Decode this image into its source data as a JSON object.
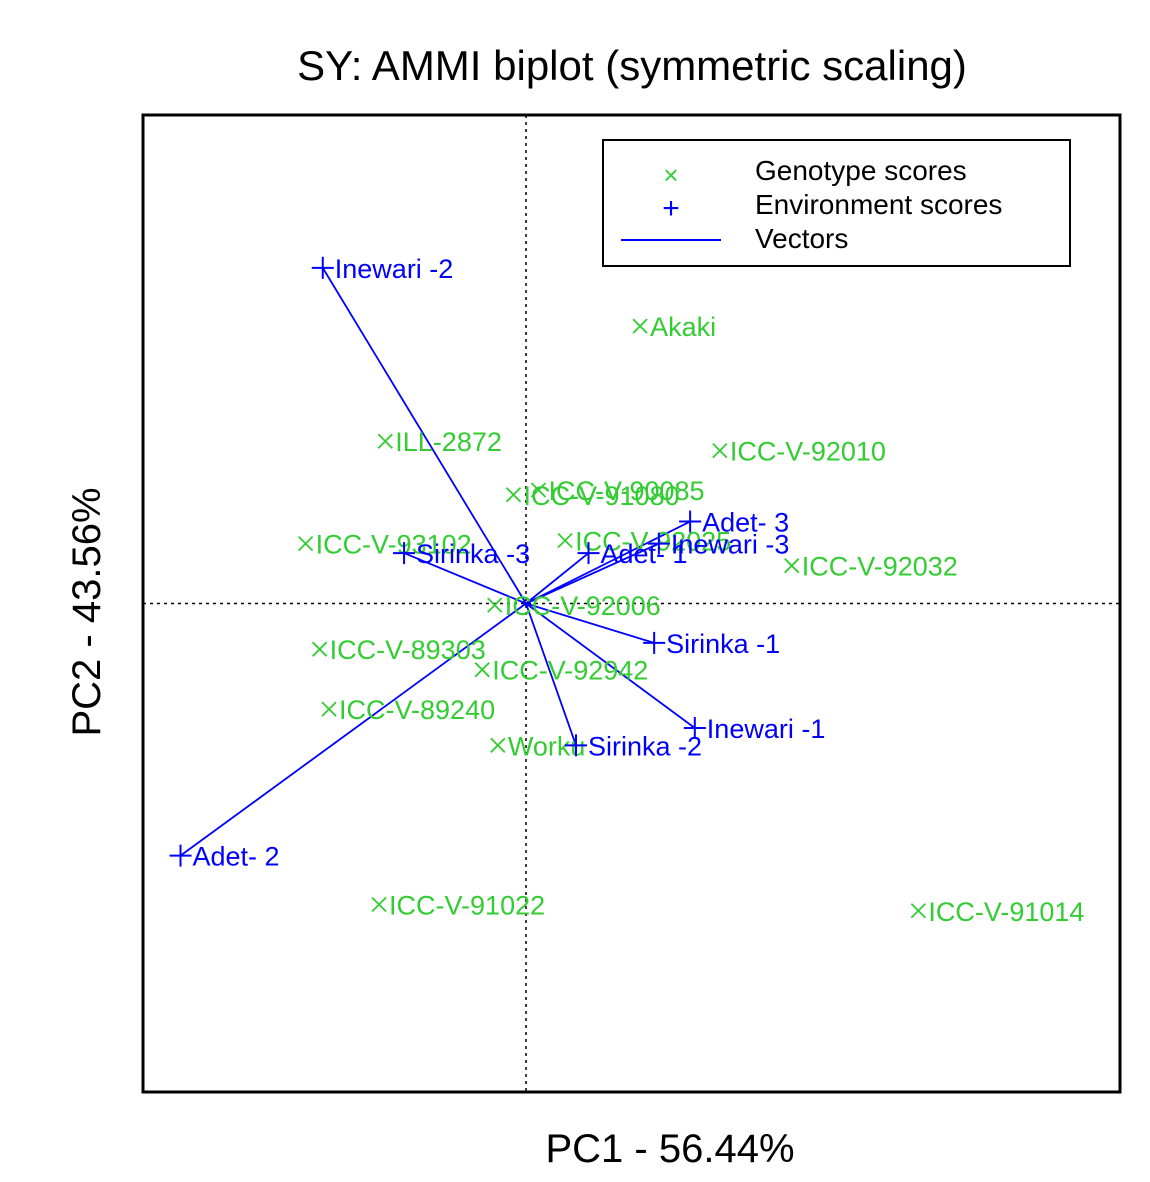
{
  "chart_data": {
    "type": "scatter",
    "title": "SY: AMMI biplot (symmetric scaling)",
    "xlabel": "PC1 - 56.44%",
    "ylabel": "PC2 - 43.56%",
    "xlim": [
      -2.45,
      3.8
    ],
    "ylim": [
      -3.1,
      3.1
    ],
    "reference_lines": {
      "x": 0,
      "y": 0,
      "style": "dotted"
    },
    "grid": false,
    "legend": {
      "placement": "top-right",
      "entries": [
        {
          "label": "Genotype scores",
          "symbol": "×",
          "color": "#33cc33"
        },
        {
          "label": "Environment scores",
          "symbol": "+",
          "color": "#0000ff"
        },
        {
          "label": "Vectors",
          "symbol": "line",
          "color": "#0000ff"
        }
      ]
    },
    "colors": {
      "genotype": "#33cc33",
      "environment": "#0000ff",
      "frame": "#000000"
    },
    "series": [
      {
        "name": "Genotype scores",
        "marker": "×",
        "points": [
          {
            "label": "Akaki",
            "x": 0.73,
            "y": 1.76
          },
          {
            "label": "ILL-2872",
            "x": -0.9,
            "y": 1.03
          },
          {
            "label": "ICC-V-92010",
            "x": 1.24,
            "y": 0.97
          },
          {
            "label": "ICC-V-90085",
            "x": 0.08,
            "y": 0.72
          },
          {
            "label": "ICC-V-91080",
            "x": -0.08,
            "y": 0.69
          },
          {
            "label": "ICC-V-93102",
            "x": -1.41,
            "y": 0.38
          },
          {
            "label": "ICC-V-92025",
            "x": 0.25,
            "y": 0.4
          },
          {
            "label": "ICC-V-92032",
            "x": 1.7,
            "y": 0.24
          },
          {
            "label": "ICC-V-92006",
            "x": -0.2,
            "y": -0.01
          },
          {
            "label": "ICC-V-89303",
            "x": -1.32,
            "y": -0.29
          },
          {
            "label": "ICC-V-92942",
            "x": -0.28,
            "y": -0.42
          },
          {
            "label": "ICC-V-89240",
            "x": -1.26,
            "y": -0.67
          },
          {
            "label": "Worku",
            "x": -0.18,
            "y": -0.9
          },
          {
            "label": "ICC-V-91022",
            "x": -0.94,
            "y": -1.91
          },
          {
            "label": "ICC-V-91014",
            "x": 2.51,
            "y": -1.95
          }
        ]
      },
      {
        "name": "Environment scores",
        "marker": "+",
        "vectors": true,
        "points": [
          {
            "label": "Inewari -2",
            "x": -1.3,
            "y": 2.13
          },
          {
            "label": "Sirinka -3",
            "x": -0.78,
            "y": 0.32
          },
          {
            "label": "Adet- 1",
            "x": 0.4,
            "y": 0.32
          },
          {
            "label": "Inewari -3",
            "x": 0.85,
            "y": 0.38
          },
          {
            "label": "Adet- 3",
            "x": 1.05,
            "y": 0.52
          },
          {
            "label": "Sirinka -1",
            "x": 0.82,
            "y": -0.25
          },
          {
            "label": "Inewari -1",
            "x": 1.08,
            "y": -0.79
          },
          {
            "label": "Sirinka -2",
            "x": 0.32,
            "y": -0.9
          },
          {
            "label": "Adet- 2",
            "x": -2.21,
            "y": -1.6
          }
        ]
      }
    ]
  }
}
